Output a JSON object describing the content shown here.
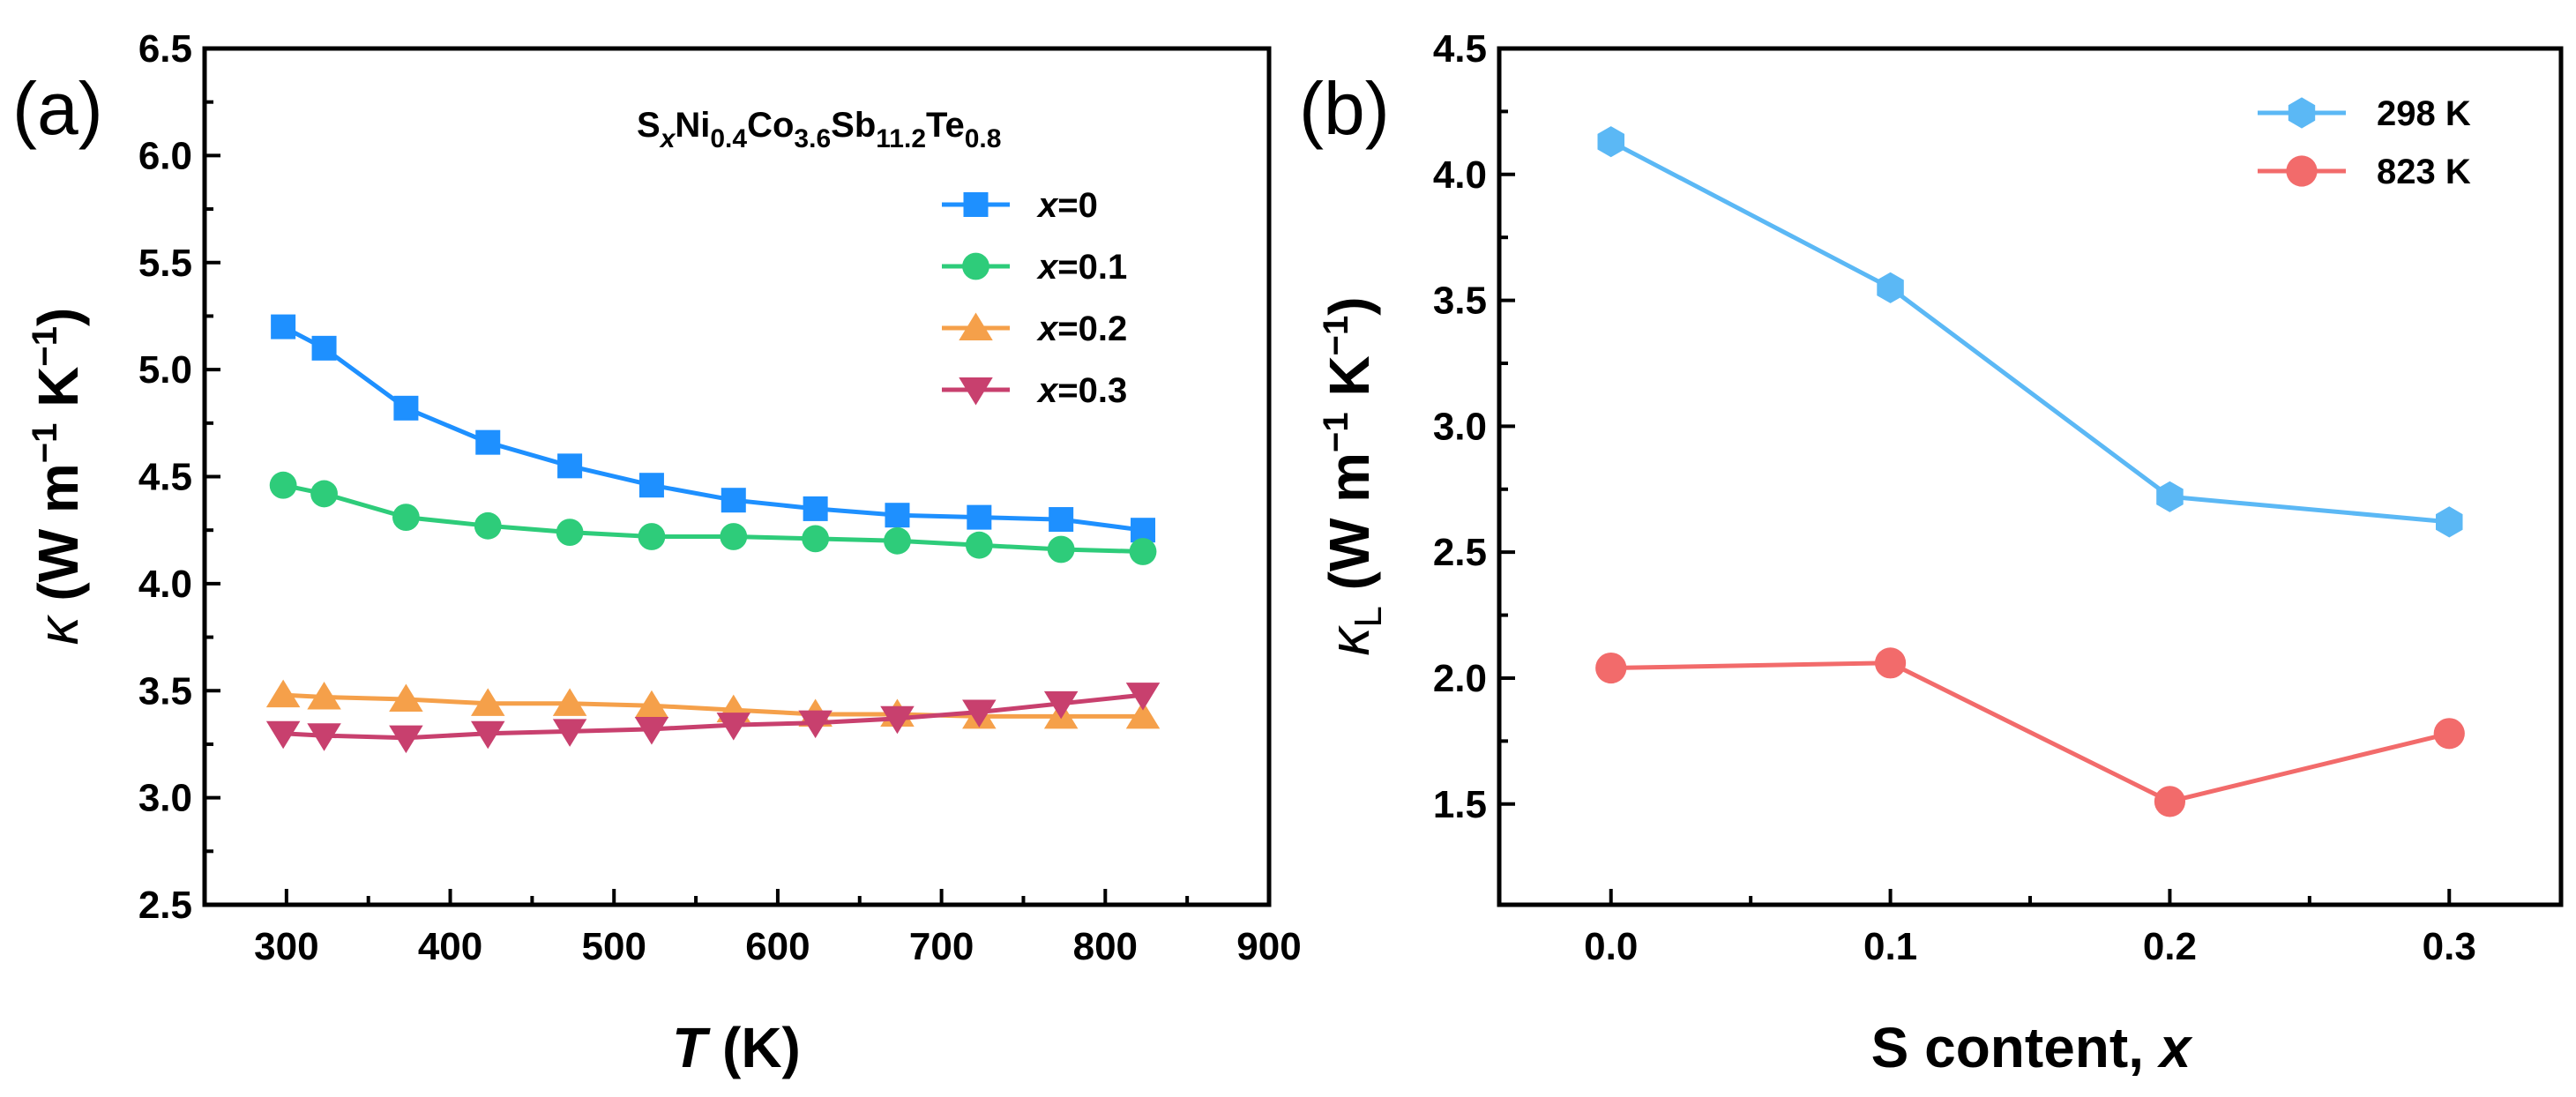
{
  "chart_data": [
    {
      "panel_label": "(a)",
      "type": "line",
      "title": "",
      "annotation": {
        "base": [
          "S",
          "Ni",
          "Co",
          "Sb",
          "Te"
        ],
        "subs": [
          "x",
          "0.4",
          "3.6",
          "11.2",
          "0.8"
        ]
      },
      "xlabel": {
        "symbol": "T",
        "unit": " (K)"
      },
      "ylabel": {
        "symbol": "κ",
        "unit": " (W m",
        "exp1": "−1",
        "mid": " K",
        "exp2": "−1",
        "end": ")"
      },
      "xlim": [
        250,
        900
      ],
      "ylim": [
        2.5,
        6.5
      ],
      "xticks": [
        300,
        400,
        500,
        600,
        700,
        800,
        900
      ],
      "xtick_labels": [
        "300",
        "400",
        "500",
        "600",
        "700",
        "800",
        "900"
      ],
      "yticks": [
        2.5,
        3.0,
        3.5,
        4.0,
        4.5,
        5.0,
        5.5,
        6.0,
        6.5
      ],
      "ytick_labels": [
        "2.5",
        "3.0",
        "3.5",
        "4.0",
        "4.5",
        "5.0",
        "5.5",
        "6.0",
        "6.5"
      ],
      "legend_position": "top-right",
      "x": [
        298,
        323,
        373,
        423,
        473,
        523,
        573,
        623,
        673,
        723,
        773,
        823
      ],
      "series": [
        {
          "name": "x=0",
          "label_var": "x",
          "label_rest": "=0",
          "color": "#1E90FF",
          "marker": "square",
          "values": [
            5.2,
            5.1,
            4.82,
            4.66,
            4.55,
            4.46,
            4.39,
            4.35,
            4.32,
            4.31,
            4.3,
            4.25
          ]
        },
        {
          "name": "x=0.1",
          "label_var": "x",
          "label_rest": "=0.1",
          "color": "#2ECC7A",
          "marker": "circle",
          "values": [
            4.46,
            4.42,
            4.31,
            4.27,
            4.24,
            4.22,
            4.22,
            4.21,
            4.2,
            4.18,
            4.16,
            4.15
          ]
        },
        {
          "name": "x=0.2",
          "label_var": "x",
          "label_rest": "=0.2",
          "color": "#F5A04A",
          "marker": "triangle-up",
          "values": [
            3.48,
            3.47,
            3.46,
            3.44,
            3.44,
            3.43,
            3.41,
            3.39,
            3.39,
            3.38,
            3.38,
            3.38
          ]
        },
        {
          "name": "x=0.3",
          "label_var": "x",
          "label_rest": "=0.3",
          "color": "#C8406E",
          "marker": "triangle-down",
          "values": [
            3.3,
            3.29,
            3.28,
            3.3,
            3.31,
            3.32,
            3.34,
            3.35,
            3.37,
            3.4,
            3.44,
            3.48
          ]
        }
      ]
    },
    {
      "panel_label": "(b)",
      "type": "line",
      "title": "",
      "xlabel": {
        "text": "S content, ",
        "var": "x"
      },
      "ylabel": {
        "symbol": "κ",
        "sub": "L",
        "unit": " (W m",
        "exp1": "−1",
        "mid": " K",
        "exp2": "−1",
        "end": ")"
      },
      "xlim": [
        -0.04,
        0.34
      ],
      "ylim": [
        1.1,
        4.5
      ],
      "xticks": [
        0.0,
        0.1,
        0.2,
        0.3
      ],
      "xtick_labels": [
        "0.0",
        "0.1",
        "0.2",
        "0.3"
      ],
      "yticks": [
        1.5,
        2.0,
        2.5,
        3.0,
        3.5,
        4.0,
        4.5
      ],
      "ytick_labels": [
        "1.5",
        "2.0",
        "2.5",
        "3.0",
        "3.5",
        "4.0",
        "4.5"
      ],
      "legend_position": "top-right",
      "x": [
        0.0,
        0.1,
        0.2,
        0.3
      ],
      "series": [
        {
          "name": "298 K",
          "color": "#5BB8F5",
          "marker": "hexagon",
          "values": [
            4.13,
            3.55,
            2.72,
            2.62
          ]
        },
        {
          "name": "823 K",
          "color": "#F26B6B",
          "marker": "circle",
          "values": [
            2.04,
            2.06,
            1.51,
            1.78
          ]
        }
      ]
    }
  ]
}
